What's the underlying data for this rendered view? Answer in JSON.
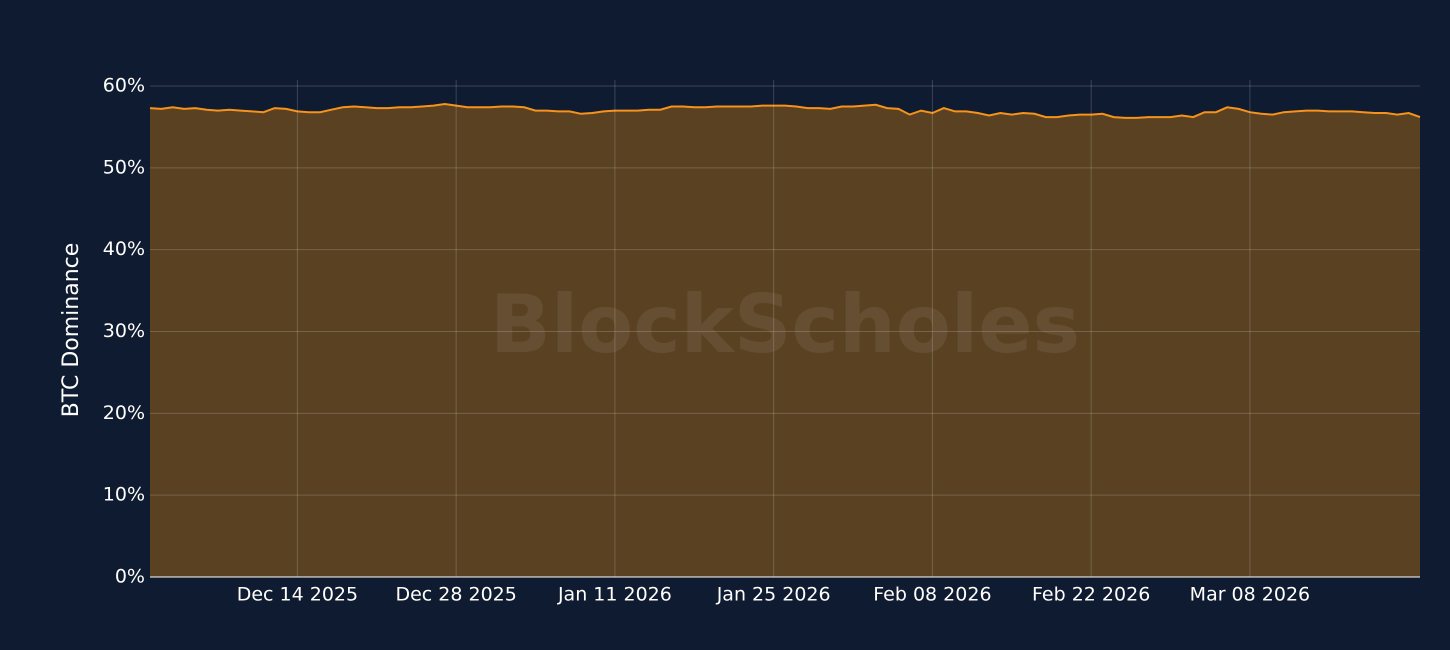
{
  "chart_data": {
    "type": "area",
    "y_label": "BTC Dominance",
    "watermark": "BlockScholes",
    "color": "#f7931a",
    "fill_color": "#5a4122",
    "grid": true,
    "x": [
      "2025-12-01",
      "2025-12-02",
      "2025-12-03",
      "2025-12-04",
      "2025-12-05",
      "2025-12-06",
      "2025-12-07",
      "2025-12-08",
      "2025-12-09",
      "2025-12-10",
      "2025-12-11",
      "2025-12-12",
      "2025-12-13",
      "2025-12-14",
      "2025-12-15",
      "2025-12-16",
      "2025-12-17",
      "2025-12-18",
      "2025-12-19",
      "2025-12-20",
      "2025-12-21",
      "2025-12-22",
      "2025-12-23",
      "2025-12-24",
      "2025-12-25",
      "2025-12-26",
      "2025-12-27",
      "2025-12-28",
      "2025-12-29",
      "2025-12-30",
      "2025-12-31",
      "2026-01-01",
      "2026-01-02",
      "2026-01-03",
      "2026-01-04",
      "2026-01-05",
      "2026-01-06",
      "2026-01-07",
      "2026-01-08",
      "2026-01-09",
      "2026-01-10",
      "2026-01-11",
      "2026-01-12",
      "2026-01-13",
      "2026-01-14",
      "2026-01-15",
      "2026-01-16",
      "2026-01-17",
      "2026-01-18",
      "2026-01-19",
      "2026-01-20",
      "2026-01-21",
      "2026-01-22",
      "2026-01-23",
      "2026-01-24",
      "2026-01-25",
      "2026-01-26",
      "2026-01-27",
      "2026-01-28",
      "2026-01-29",
      "2026-01-30",
      "2026-01-31",
      "2026-02-01",
      "2026-02-02",
      "2026-02-03",
      "2026-02-04",
      "2026-02-05",
      "2026-02-06",
      "2026-02-07",
      "2026-02-08",
      "2026-02-09",
      "2026-02-10",
      "2026-02-11",
      "2026-02-12",
      "2026-02-13",
      "2026-02-14",
      "2026-02-15",
      "2026-02-16",
      "2026-02-17",
      "2026-02-18",
      "2026-02-19",
      "2026-02-20",
      "2026-02-21",
      "2026-02-22",
      "2026-02-23",
      "2026-02-24",
      "2026-02-25",
      "2026-02-26",
      "2026-02-27",
      "2026-02-28",
      "2026-03-01",
      "2026-03-02",
      "2026-03-03",
      "2026-03-04",
      "2026-03-05",
      "2026-03-06",
      "2026-03-07",
      "2026-03-08",
      "2026-03-09",
      "2026-03-10",
      "2026-03-11",
      "2026-03-12",
      "2026-03-13",
      "2026-03-14",
      "2026-03-15",
      "2026-03-16",
      "2026-03-17",
      "2026-03-18",
      "2026-03-19",
      "2026-03-20",
      "2026-03-21",
      "2026-03-22",
      "2026-03-23"
    ],
    "values": [
      57.3,
      57.2,
      57.4,
      57.2,
      57.3,
      57.1,
      57.0,
      57.1,
      57.0,
      56.9,
      56.8,
      57.3,
      57.2,
      56.9,
      56.8,
      56.8,
      57.1,
      57.4,
      57.5,
      57.4,
      57.3,
      57.3,
      57.4,
      57.4,
      57.5,
      57.6,
      57.8,
      57.6,
      57.4,
      57.4,
      57.4,
      57.5,
      57.5,
      57.4,
      57.0,
      57.0,
      56.9,
      56.9,
      56.6,
      56.7,
      56.9,
      57.0,
      57.0,
      57.0,
      57.1,
      57.1,
      57.5,
      57.5,
      57.4,
      57.4,
      57.5,
      57.5,
      57.5,
      57.5,
      57.6,
      57.6,
      57.6,
      57.5,
      57.3,
      57.3,
      57.2,
      57.5,
      57.5,
      57.6,
      57.7,
      57.3,
      57.2,
      56.5,
      57.0,
      56.7,
      57.3,
      56.9,
      56.9,
      56.7,
      56.4,
      56.7,
      56.5,
      56.7,
      56.6,
      56.2,
      56.2,
      56.4,
      56.5,
      56.5,
      56.6,
      56.2,
      56.1,
      56.1,
      56.2,
      56.2,
      56.2,
      56.4,
      56.2,
      56.8,
      56.8,
      57.4,
      57.2,
      56.8,
      56.6,
      56.5,
      56.8,
      56.9,
      57.0,
      57.0,
      56.9,
      56.9,
      56.9,
      56.8,
      56.7,
      56.7,
      56.5,
      56.7,
      56.2
    ],
    "xlim": [
      "2025-12-01",
      "2026-03-23"
    ],
    "xticks": [
      {
        "value": "2025-12-14",
        "label": "Dec 14 2025"
      },
      {
        "value": "2025-12-28",
        "label": "Dec 28 2025"
      },
      {
        "value": "2026-01-11",
        "label": "Jan 11 2026"
      },
      {
        "value": "2026-01-25",
        "label": "Jan 25 2026"
      },
      {
        "value": "2026-02-08",
        "label": "Feb 08 2026"
      },
      {
        "value": "2026-02-22",
        "label": "Feb 22 2026"
      },
      {
        "value": "2026-03-08",
        "label": "Mar 08 2026"
      }
    ],
    "ylim": [
      0,
      60
    ],
    "yticks": [
      {
        "value": 0,
        "label": "0%"
      },
      {
        "value": 10,
        "label": "10%"
      },
      {
        "value": 20,
        "label": "20%"
      },
      {
        "value": 30,
        "label": "30%"
      },
      {
        "value": 40,
        "label": "40%"
      },
      {
        "value": 50,
        "label": "50%"
      },
      {
        "value": 60,
        "label": "60%"
      }
    ]
  }
}
